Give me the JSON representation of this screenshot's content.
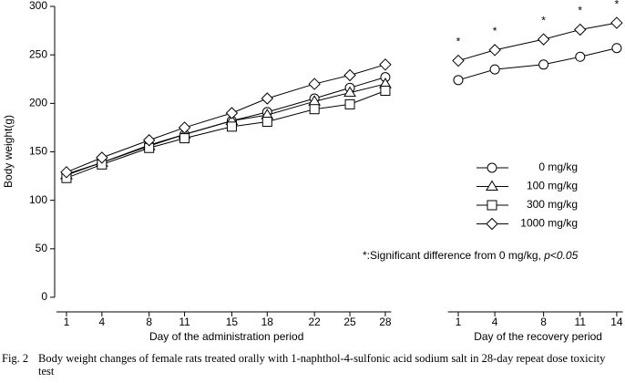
{
  "chart_data": {
    "type": "line",
    "ylabel": "Body weight(g)",
    "ylim": [
      0,
      300
    ],
    "yticks": [
      0,
      50,
      100,
      150,
      200,
      250,
      300
    ],
    "panels": [
      {
        "xlabel": "Day of the administration period",
        "x": [
          1,
          4,
          8,
          11,
          15,
          18,
          22,
          25,
          28
        ],
        "xlim": [
          0,
          28.5
        ],
        "xticks": [
          1,
          4,
          8,
          11,
          15,
          18,
          22,
          25,
          28
        ]
      },
      {
        "xlabel": "Day of the recovery period",
        "x": [
          1,
          4,
          8,
          11,
          14
        ],
        "xlim": [
          0,
          14.5
        ],
        "xticks": [
          1,
          4,
          8,
          11,
          14
        ]
      }
    ],
    "series": [
      {
        "name": "0 mg/kg",
        "marker": "circle",
        "color": "#000000",
        "values": [
          [
            127,
            139,
            157,
            168,
            182,
            191,
            205,
            216,
            227
          ],
          [
            224,
            235,
            240,
            248,
            257
          ]
        ]
      },
      {
        "name": "100 mg/kg",
        "marker": "triangle",
        "color": "#000000",
        "values": [
          [
            126,
            139,
            156,
            168,
            182,
            188,
            202,
            211,
            220
          ],
          [
            null,
            null,
            null,
            null,
            null
          ]
        ]
      },
      {
        "name": "300 mg/kg",
        "marker": "square",
        "color": "#000000",
        "values": [
          [
            123,
            137,
            154,
            164,
            176,
            181,
            194,
            199,
            213
          ],
          [
            null,
            null,
            null,
            null,
            null
          ]
        ]
      },
      {
        "name": "1000 mg/kg",
        "marker": "diamond",
        "color": "#000000",
        "values": [
          [
            129,
            144,
            162,
            175,
            190,
            205,
            220,
            229,
            240
          ],
          [
            244,
            255,
            266,
            276,
            283
          ]
        ],
        "point_labels": [
          [
            null,
            null,
            null,
            null,
            null,
            null,
            null,
            null,
            null
          ],
          [
            "*",
            "*",
            "*",
            "*",
            "*"
          ]
        ]
      }
    ],
    "note": {
      "symbol": "*",
      "text": ":Significant difference from 0 mg/kg, ",
      "p": "p<0.05"
    }
  },
  "caption": {
    "label": "Fig. 2",
    "text": "Body weight changes of female rats treated orally with 1-naphthol-4-sulfonic acid sodium salt in 28-day repeat dose toxicity test"
  }
}
